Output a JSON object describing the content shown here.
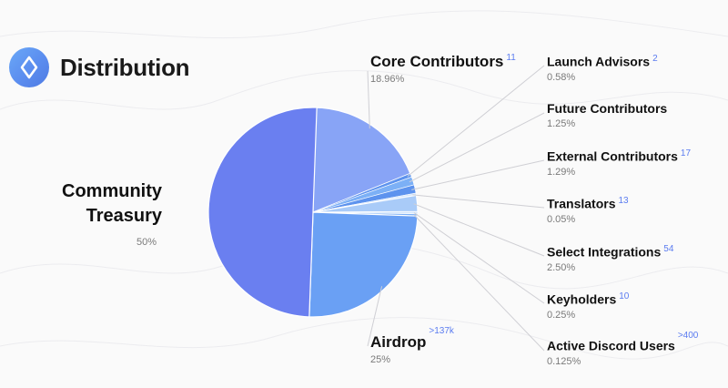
{
  "header": {
    "title": "Distribution",
    "logo_icon": "ens-logo-icon"
  },
  "colors": {
    "treasury": "#6a7ff0",
    "core": "#88a4f6",
    "airdrop": "#6aa0f4",
    "small_a": "#5d93ee",
    "small_b": "#7cb0f6",
    "small_c": "#a9cbf8",
    "small_d": "#d4e6fc",
    "leader": "#cfcfd4"
  },
  "chart_data": {
    "type": "pie",
    "title": "Distribution",
    "slices": [
      {
        "key": "treasury",
        "label_line1": "Community",
        "label_line2": "Treasury",
        "percent_text": "50%",
        "value": 50,
        "count": ""
      },
      {
        "key": "core",
        "label": "Core Contributors",
        "percent_text": "18.96%",
        "value": 18.96,
        "count": "11"
      },
      {
        "key": "launch",
        "label": "Launch Advisors",
        "percent_text": "0.58%",
        "value": 0.58,
        "count": "2"
      },
      {
        "key": "future",
        "label": "Future Contributors",
        "percent_text": "1.25%",
        "value": 1.25,
        "count": ""
      },
      {
        "key": "external",
        "label": "External Contributors",
        "percent_text": "1.29%",
        "value": 1.29,
        "count": "17"
      },
      {
        "key": "translators",
        "label": "Translators",
        "percent_text": "0.05%",
        "value": 0.05,
        "count": "13"
      },
      {
        "key": "integrations",
        "label": "Select Integrations",
        "percent_text": "2.50%",
        "value": 2.5,
        "count": "54"
      },
      {
        "key": "keyholders",
        "label": "Keyholders",
        "percent_text": "0.25%",
        "value": 0.25,
        "count": "10"
      },
      {
        "key": "discord",
        "label": "Active Discord Users",
        "percent_text": "0.125%",
        "value": 0.125,
        "count": ">400"
      },
      {
        "key": "airdrop",
        "label": "Airdrop",
        "percent_text": "25%",
        "value": 25,
        "count": ">137k"
      }
    ]
  }
}
